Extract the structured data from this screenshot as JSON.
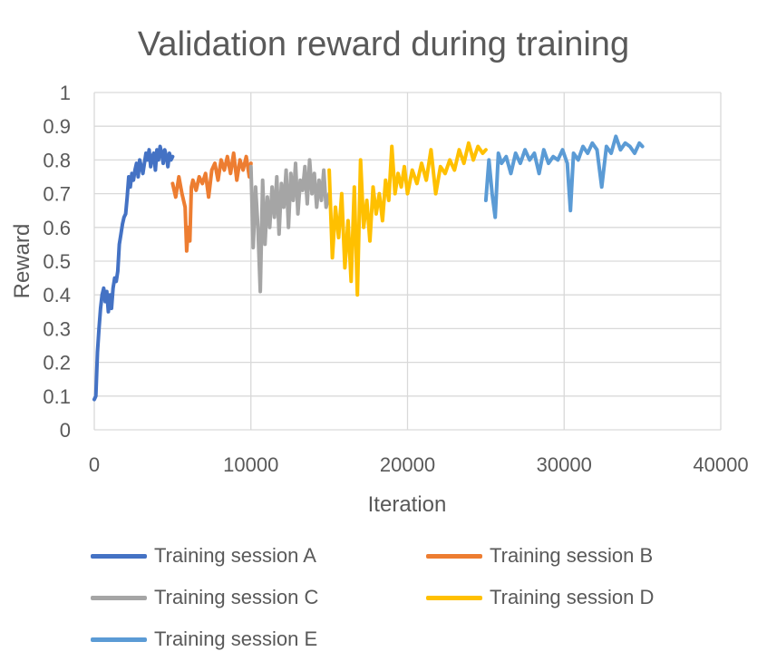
{
  "chart_data": {
    "type": "line",
    "title": "Validation reward during training",
    "xlabel": "Iteration",
    "ylabel": "Reward",
    "xlim": [
      0,
      40000
    ],
    "ylim": [
      0,
      1
    ],
    "x_ticks": [
      "0",
      "10000",
      "20000",
      "30000",
      "40000"
    ],
    "y_ticks": [
      "0",
      "0.1",
      "0.2",
      "0.3",
      "0.4",
      "0.5",
      "0.6",
      "0.7",
      "0.8",
      "0.9",
      "1"
    ],
    "grid": true,
    "legend_position": "bottom",
    "series": [
      {
        "name": "Training session A",
        "color": "#4472C4",
        "x": [
          0,
          100,
          200,
          300,
          400,
          500,
          600,
          700,
          800,
          900,
          1000,
          1100,
          1200,
          1300,
          1400,
          1500,
          1600,
          1700,
          1800,
          1900,
          2000,
          2100,
          2200,
          2300,
          2400,
          2500,
          2600,
          2700,
          2800,
          2900,
          3000,
          3100,
          3200,
          3300,
          3400,
          3500,
          3600,
          3700,
          3800,
          3900,
          4000,
          4100,
          4200,
          4300,
          4400,
          4500,
          4600,
          4700,
          4800,
          4900,
          5000
        ],
        "y": [
          0.09,
          0.1,
          0.23,
          0.3,
          0.36,
          0.4,
          0.42,
          0.38,
          0.41,
          0.35,
          0.4,
          0.36,
          0.42,
          0.45,
          0.44,
          0.47,
          0.55,
          0.58,
          0.61,
          0.63,
          0.64,
          0.69,
          0.75,
          0.72,
          0.76,
          0.74,
          0.77,
          0.79,
          0.75,
          0.8,
          0.78,
          0.76,
          0.79,
          0.82,
          0.8,
          0.83,
          0.78,
          0.81,
          0.82,
          0.77,
          0.83,
          0.8,
          0.84,
          0.82,
          0.79,
          0.83,
          0.81,
          0.78,
          0.82,
          0.8,
          0.81
        ]
      },
      {
        "name": "Training session B",
        "color": "#ED7D31",
        "x": [
          5000,
          5200,
          5400,
          5600,
          5800,
          5900,
          6000,
          6100,
          6200,
          6300,
          6500,
          6700,
          6900,
          7100,
          7300,
          7500,
          7700,
          7900,
          8100,
          8300,
          8500,
          8700,
          8900,
          9100,
          9300,
          9500,
          9700,
          9900,
          10000
        ],
        "y": [
          0.73,
          0.69,
          0.75,
          0.7,
          0.66,
          0.53,
          0.6,
          0.56,
          0.72,
          0.74,
          0.71,
          0.75,
          0.73,
          0.76,
          0.69,
          0.77,
          0.79,
          0.74,
          0.8,
          0.77,
          0.81,
          0.76,
          0.82,
          0.74,
          0.8,
          0.77,
          0.81,
          0.75,
          0.79
        ]
      },
      {
        "name": "Training session C",
        "color": "#A5A5A5",
        "x": [
          10000,
          10150,
          10300,
          10450,
          10600,
          10750,
          10900,
          11050,
          11200,
          11350,
          11500,
          11650,
          11800,
          11950,
          12100,
          12250,
          12400,
          12550,
          12700,
          12850,
          13000,
          13150,
          13300,
          13450,
          13600,
          13750,
          13900,
          14050,
          14200,
          14350,
          14500,
          14650,
          14800,
          15000
        ],
        "y": [
          0.78,
          0.54,
          0.72,
          0.6,
          0.41,
          0.74,
          0.55,
          0.69,
          0.6,
          0.72,
          0.63,
          0.75,
          0.58,
          0.73,
          0.66,
          0.77,
          0.6,
          0.76,
          0.68,
          0.79,
          0.64,
          0.74,
          0.71,
          0.78,
          0.67,
          0.8,
          0.7,
          0.76,
          0.66,
          0.74,
          0.68,
          0.77,
          0.66,
          0.7
        ]
      },
      {
        "name": "Training session D",
        "color": "#FFC000",
        "x": [
          15000,
          15200,
          15400,
          15600,
          15800,
          16000,
          16200,
          16400,
          16600,
          16800,
          17000,
          17200,
          17400,
          17600,
          17800,
          18000,
          18200,
          18400,
          18600,
          18800,
          19000,
          19200,
          19400,
          19600,
          19800,
          20000,
          20300,
          20600,
          20900,
          21200,
          21500,
          21800,
          22100,
          22400,
          22700,
          23000,
          23300,
          23600,
          23900,
          24200,
          24500,
          24800,
          25000
        ],
        "y": [
          0.77,
          0.51,
          0.66,
          0.57,
          0.7,
          0.48,
          0.62,
          0.44,
          0.72,
          0.4,
          0.8,
          0.6,
          0.68,
          0.56,
          0.72,
          0.64,
          0.7,
          0.62,
          0.74,
          0.68,
          0.84,
          0.7,
          0.76,
          0.72,
          0.78,
          0.7,
          0.77,
          0.73,
          0.79,
          0.74,
          0.83,
          0.7,
          0.78,
          0.76,
          0.8,
          0.77,
          0.83,
          0.79,
          0.85,
          0.8,
          0.84,
          0.82,
          0.83
        ]
      },
      {
        "name": "Training session E",
        "color": "#5B9BD5",
        "x": [
          25000,
          25200,
          25400,
          25600,
          25800,
          26000,
          26300,
          26600,
          26900,
          27200,
          27500,
          27800,
          28100,
          28400,
          28700,
          29000,
          29300,
          29600,
          29900,
          30200,
          30400,
          30600,
          30900,
          31200,
          31500,
          31800,
          32100,
          32400,
          32700,
          33000,
          33300,
          33600,
          33900,
          34200,
          34500,
          34800,
          35000
        ],
        "y": [
          0.68,
          0.8,
          0.7,
          0.63,
          0.82,
          0.79,
          0.81,
          0.76,
          0.82,
          0.79,
          0.83,
          0.8,
          0.82,
          0.76,
          0.83,
          0.79,
          0.81,
          0.8,
          0.83,
          0.79,
          0.65,
          0.82,
          0.8,
          0.84,
          0.82,
          0.85,
          0.83,
          0.72,
          0.84,
          0.82,
          0.87,
          0.83,
          0.85,
          0.84,
          0.82,
          0.85,
          0.84
        ]
      }
    ]
  }
}
